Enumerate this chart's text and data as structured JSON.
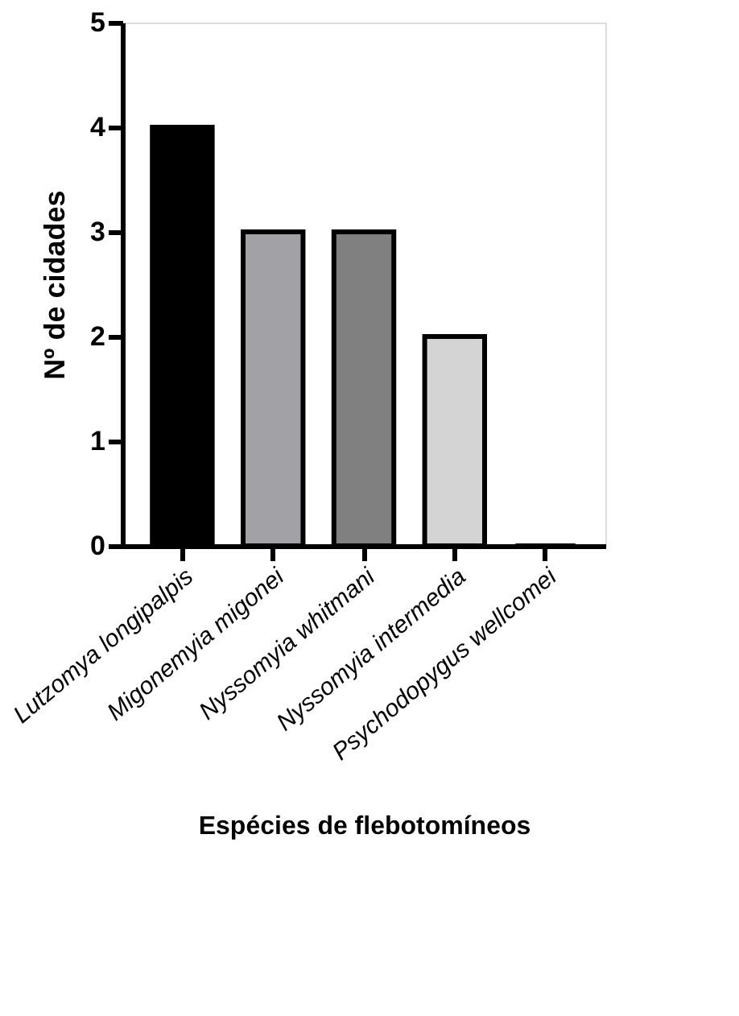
{
  "chart_data": {
    "type": "bar",
    "xlabel": "Espécies de flebotomíneos",
    "ylabel": "Nº de cidades",
    "categories": [
      "Lutzomya longipalpis",
      "Migonemyia migonei",
      "Nyssomyia whitmani",
      "Nyssomyia intermedia",
      "Psychodopygus wellcomei"
    ],
    "values": [
      4,
      3,
      3,
      2,
      0
    ],
    "colors": [
      "#000000",
      "#a2a2a6",
      "#808080",
      "#d4d4d4",
      "#ffffff"
    ],
    "ylim": [
      0,
      5
    ],
    "yticks": [
      0,
      1,
      2,
      3,
      4,
      5
    ],
    "grid": false,
    "legend": false
  }
}
